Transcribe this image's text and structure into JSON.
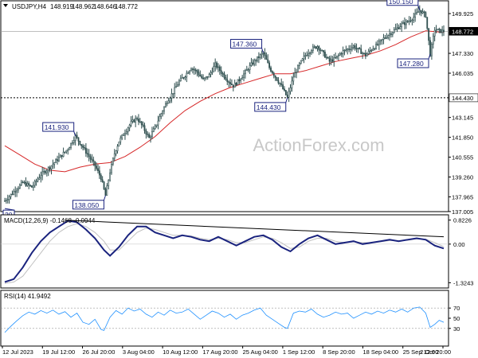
{
  "chart_data": [
    {
      "type": "candlestick",
      "title": "USDJPY,H4",
      "ohlc_header": {
        "open": "148.919",
        "high": "148.962",
        "low": "148.646",
        "close": "148.772"
      },
      "ylim": [
        137.0,
        150.5
      ],
      "y_ticks": [
        "149.925",
        "148.772",
        "147.330",
        "146.035",
        "144.430",
        "143.145",
        "141.850",
        "140.555",
        "139.260",
        "137.965",
        "137.005"
      ],
      "current_price_label": "148.772",
      "support_line_label": "144.430",
      "x_ticks": [
        "12 Jul 2023",
        "19 Jul 12:00",
        "26 Jul 20:00",
        "3 Aug 04:00",
        "10 Aug 12:00",
        "17 Aug 20:00",
        "25 Aug 04:00",
        "1 Sep 12:00",
        "8 Sep 20:00",
        "18 Sep 04:00",
        "25 Sep 12:00",
        "2 Oct 20:00"
      ],
      "price_path": [
        [
          0,
          137.7
        ],
        [
          6,
          138.3
        ],
        [
          12,
          138.9
        ],
        [
          18,
          138.6
        ],
        [
          24,
          139.4
        ],
        [
          30,
          139.9
        ],
        [
          36,
          140.5
        ],
        [
          42,
          141.1
        ],
        [
          47,
          141.93
        ],
        [
          52,
          141.2
        ],
        [
          56,
          140.6
        ],
        [
          60,
          140.0
        ],
        [
          64,
          139.2
        ],
        [
          67,
          138.05
        ],
        [
          70,
          139.6
        ],
        [
          73,
          140.8
        ],
        [
          76,
          141.6
        ],
        [
          80,
          142.2
        ],
        [
          84,
          142.8
        ],
        [
          88,
          143.1
        ],
        [
          92,
          142.5
        ],
        [
          96,
          141.8
        ],
        [
          100,
          142.5
        ],
        [
          104,
          143.4
        ],
        [
          108,
          144.2
        ],
        [
          112,
          144.8
        ],
        [
          116,
          145.5
        ],
        [
          120,
          145.9
        ],
        [
          124,
          146.4
        ],
        [
          128,
          146.1
        ],
        [
          132,
          145.6
        ],
        [
          136,
          145.9
        ],
        [
          140,
          146.6
        ],
        [
          144,
          146.1
        ],
        [
          148,
          145.6
        ],
        [
          152,
          145.2
        ],
        [
          156,
          145.6
        ],
        [
          160,
          146.1
        ],
        [
          164,
          146.6
        ],
        [
          168,
          147.0
        ],
        [
          172,
          147.36
        ],
        [
          176,
          146.4
        ],
        [
          180,
          145.8
        ],
        [
          184,
          145.2
        ],
        [
          188,
          144.43
        ],
        [
          192,
          145.8
        ],
        [
          196,
          146.6
        ],
        [
          200,
          147.2
        ],
        [
          204,
          147.6
        ],
        [
          208,
          147.8
        ],
        [
          212,
          147.3
        ],
        [
          216,
          146.8
        ],
        [
          220,
          147.0
        ],
        [
          224,
          147.4
        ],
        [
          228,
          147.6
        ],
        [
          232,
          147.8
        ],
        [
          236,
          147.5
        ],
        [
          240,
          147.2
        ],
        [
          244,
          147.6
        ],
        [
          248,
          147.9
        ],
        [
          252,
          148.3
        ],
        [
          256,
          148.6
        ],
        [
          260,
          148.9
        ],
        [
          264,
          149.2
        ],
        [
          268,
          149.4
        ],
        [
          272,
          149.7
        ],
        [
          276,
          150.15
        ],
        [
          280,
          149.8
        ],
        [
          283,
          147.28
        ],
        [
          286,
          148.9
        ],
        [
          289,
          148.8
        ],
        [
          292,
          148.77
        ]
      ],
      "moving_average_path": [
        [
          0,
          141.3
        ],
        [
          10,
          140.7
        ],
        [
          20,
          140.1
        ],
        [
          30,
          139.7
        ],
        [
          40,
          139.6
        ],
        [
          50,
          139.9
        ],
        [
          60,
          140.1
        ],
        [
          70,
          140.2
        ],
        [
          80,
          140.6
        ],
        [
          90,
          141.2
        ],
        [
          100,
          141.9
        ],
        [
          110,
          142.8
        ],
        [
          120,
          143.6
        ],
        [
          130,
          144.2
        ],
        [
          140,
          144.7
        ],
        [
          150,
          145.1
        ],
        [
          160,
          145.4
        ],
        [
          170,
          145.7
        ],
        [
          180,
          146.0
        ],
        [
          190,
          146.0
        ],
        [
          200,
          146.2
        ],
        [
          210,
          146.5
        ],
        [
          220,
          146.8
        ],
        [
          230,
          147.0
        ],
        [
          240,
          147.2
        ],
        [
          250,
          147.5
        ],
        [
          260,
          147.9
        ],
        [
          270,
          148.4
        ],
        [
          280,
          148.8
        ],
        [
          292,
          148.7
        ]
      ],
      "annotations": [
        {
          "label": "141.930",
          "x": 47,
          "y": 141.93,
          "placement": "above-left"
        },
        {
          "label": "138.050",
          "x": 67,
          "y": 138.05,
          "placement": "below-left"
        },
        {
          "label": "147.360",
          "x": 172,
          "y": 147.36,
          "placement": "above-left"
        },
        {
          "label": "144.430",
          "x": 188,
          "y": 144.43,
          "placement": "below-left"
        },
        {
          "label": "150.150",
          "x": 276,
          "y": 150.15,
          "placement": "above-left"
        },
        {
          "label": "147.280",
          "x": 283,
          "y": 147.28,
          "placement": "below-left"
        },
        {
          "label": "20",
          "x": 0,
          "y": 137.2,
          "placement": "below-right"
        }
      ],
      "watermark": "ActionForex.com",
      "grid": false
    },
    {
      "type": "line",
      "title": "MACD(12,26,9) -0.1468 -0.0944",
      "ylim": [
        -1.45,
        0.95
      ],
      "y_ticks": [
        "0.8226",
        "0.00",
        "-1.3243"
      ],
      "series": [
        {
          "name": "MACD",
          "values": [
            [
              0,
              -1.3
            ],
            [
              6,
              -1.2
            ],
            [
              12,
              -0.8
            ],
            [
              18,
              -0.3
            ],
            [
              24,
              0.1
            ],
            [
              30,
              0.4
            ],
            [
              36,
              0.6
            ],
            [
              42,
              0.8
            ],
            [
              48,
              0.75
            ],
            [
              54,
              0.5
            ],
            [
              60,
              0.2
            ],
            [
              66,
              -0.2
            ],
            [
              70,
              -0.4
            ],
            [
              76,
              -0.1
            ],
            [
              82,
              0.3
            ],
            [
              88,
              0.6
            ],
            [
              94,
              0.6
            ],
            [
              100,
              0.4
            ],
            [
              106,
              0.3
            ],
            [
              112,
              0.2
            ],
            [
              118,
              0.3
            ],
            [
              124,
              0.25
            ],
            [
              130,
              0.15
            ],
            [
              136,
              0.1
            ],
            [
              142,
              0.25
            ],
            [
              148,
              0.1
            ],
            [
              154,
              -0.05
            ],
            [
              160,
              0.1
            ],
            [
              166,
              0.25
            ],
            [
              172,
              0.3
            ],
            [
              178,
              0.15
            ],
            [
              184,
              -0.1
            ],
            [
              190,
              -0.25
            ],
            [
              196,
              0.0
            ],
            [
              202,
              0.2
            ],
            [
              208,
              0.3
            ],
            [
              214,
              0.15
            ],
            [
              220,
              0.0
            ],
            [
              226,
              0.05
            ],
            [
              232,
              0.1
            ],
            [
              238,
              0.0
            ],
            [
              244,
              0.05
            ],
            [
              250,
              0.1
            ],
            [
              256,
              0.15
            ],
            [
              262,
              0.1
            ],
            [
              268,
              0.15
            ],
            [
              274,
              0.2
            ],
            [
              280,
              0.15
            ],
            [
              286,
              -0.05
            ],
            [
              292,
              -0.15
            ]
          ]
        },
        {
          "name": "Signal",
          "values": [
            [
              0,
              -1.35
            ],
            [
              6,
              -1.3
            ],
            [
              12,
              -1.1
            ],
            [
              18,
              -0.7
            ],
            [
              24,
              -0.3
            ],
            [
              30,
              0.1
            ],
            [
              36,
              0.4
            ],
            [
              42,
              0.6
            ],
            [
              48,
              0.7
            ],
            [
              54,
              0.6
            ],
            [
              60,
              0.4
            ],
            [
              66,
              0.1
            ],
            [
              70,
              -0.2
            ],
            [
              76,
              -0.2
            ],
            [
              82,
              0.1
            ],
            [
              88,
              0.4
            ],
            [
              94,
              0.55
            ],
            [
              100,
              0.5
            ],
            [
              106,
              0.4
            ],
            [
              112,
              0.3
            ],
            [
              118,
              0.3
            ],
            [
              124,
              0.28
            ],
            [
              130,
              0.2
            ],
            [
              136,
              0.15
            ],
            [
              142,
              0.2
            ],
            [
              148,
              0.15
            ],
            [
              154,
              0.05
            ],
            [
              160,
              0.05
            ],
            [
              166,
              0.15
            ],
            [
              172,
              0.25
            ],
            [
              178,
              0.2
            ],
            [
              184,
              0.05
            ],
            [
              190,
              -0.15
            ],
            [
              196,
              -0.1
            ],
            [
              202,
              0.1
            ],
            [
              208,
              0.2
            ],
            [
              214,
              0.2
            ],
            [
              220,
              0.1
            ],
            [
              226,
              0.05
            ],
            [
              232,
              0.08
            ],
            [
              238,
              0.05
            ],
            [
              244,
              0.05
            ],
            [
              250,
              0.08
            ],
            [
              256,
              0.12
            ],
            [
              262,
              0.12
            ],
            [
              268,
              0.13
            ],
            [
              274,
              0.18
            ],
            [
              280,
              0.17
            ],
            [
              286,
              0.05
            ],
            [
              292,
              -0.09
            ]
          ]
        }
      ],
      "divergence_line": [
        [
          40,
          0.82
        ],
        [
          292,
          0.25
        ]
      ]
    },
    {
      "type": "line",
      "title": "RSI(14) 41.9492",
      "ylim": [
        0,
        100
      ],
      "y_ticks": [
        "70",
        "50",
        "30"
      ],
      "series": [
        {
          "name": "RSI",
          "values": [
            [
              0,
              22
            ],
            [
              4,
              34
            ],
            [
              8,
              45
            ],
            [
              12,
              55
            ],
            [
              16,
              62
            ],
            [
              20,
              58
            ],
            [
              24,
              65
            ],
            [
              28,
              60
            ],
            [
              32,
              66
            ],
            [
              36,
              58
            ],
            [
              40,
              63
            ],
            [
              44,
              52
            ],
            [
              48,
              60
            ],
            [
              52,
              42
            ],
            [
              56,
              38
            ],
            [
              60,
              48
            ],
            [
              64,
              28
            ],
            [
              66,
              26
            ],
            [
              70,
              52
            ],
            [
              74,
              65
            ],
            [
              78,
              58
            ],
            [
              82,
              70
            ],
            [
              86,
              64
            ],
            [
              90,
              68
            ],
            [
              94,
              58
            ],
            [
              98,
              52
            ],
            [
              102,
              62
            ],
            [
              106,
              56
            ],
            [
              110,
              66
            ],
            [
              114,
              60
            ],
            [
              118,
              62
            ],
            [
              122,
              68
            ],
            [
              126,
              58
            ],
            [
              130,
              48
            ],
            [
              134,
              56
            ],
            [
              138,
              64
            ],
            [
              142,
              60
            ],
            [
              146,
              52
            ],
            [
              150,
              58
            ],
            [
              154,
              48
            ],
            [
              158,
              56
            ],
            [
              162,
              60
            ],
            [
              166,
              66
            ],
            [
              170,
              70
            ],
            [
              174,
              56
            ],
            [
              178,
              48
            ],
            [
              182,
              40
            ],
            [
              186,
              32
            ],
            [
              188,
              30
            ],
            [
              192,
              60
            ],
            [
              196,
              64
            ],
            [
              200,
              62
            ],
            [
              204,
              68
            ],
            [
              208,
              58
            ],
            [
              212,
              52
            ],
            [
              216,
              56
            ],
            [
              220,
              62
            ],
            [
              224,
              58
            ],
            [
              228,
              60
            ],
            [
              232,
              50
            ],
            [
              236,
              56
            ],
            [
              240,
              62
            ],
            [
              244,
              58
            ],
            [
              248,
              64
            ],
            [
              252,
              60
            ],
            [
              256,
              66
            ],
            [
              260,
              62
            ],
            [
              264,
              68
            ],
            [
              268,
              62
            ],
            [
              272,
              70
            ],
            [
              276,
              72
            ],
            [
              280,
              60
            ],
            [
              283,
              32
            ],
            [
              286,
              38
            ],
            [
              289,
              46
            ],
            [
              292,
              42
            ]
          ]
        }
      ]
    }
  ]
}
